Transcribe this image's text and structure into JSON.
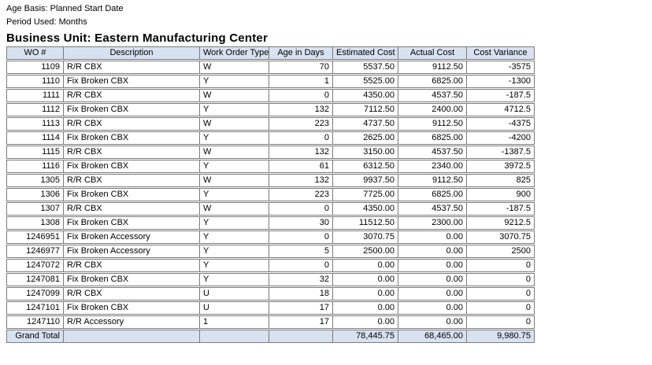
{
  "meta": {
    "age_basis": "Age Basis: Planned Start Date",
    "period_used": "Period Used: Months"
  },
  "title": "Business Unit: Eastern Manufacturing Center",
  "table": {
    "columns": [
      "WO #",
      "Description",
      "Work Order Type",
      "Age in Days",
      "Estimated Cost",
      "Actual Cost",
      "Cost Variance"
    ],
    "rows": [
      [
        "1109",
        "R/R CBX",
        "W",
        "70",
        "5537.50",
        "9112.50",
        "-3575"
      ],
      [
        "1110",
        "Fix Broken CBX",
        "Y",
        "1",
        "5525.00",
        "6825.00",
        "-1300"
      ],
      [
        "1111",
        "R/R CBX",
        "W",
        "0",
        "4350.00",
        "4537.50",
        "-187.5"
      ],
      [
        "1112",
        "Fix Broken CBX",
        "Y",
        "132",
        "7112.50",
        "2400.00",
        "4712.5"
      ],
      [
        "1113",
        "R/R CBX",
        "W",
        "223",
        "4737.50",
        "9112.50",
        "-4375"
      ],
      [
        "1114",
        "Fix Broken CBX",
        "Y",
        "0",
        "2625.00",
        "6825.00",
        "-4200"
      ],
      [
        "1115",
        "R/R CBX",
        "W",
        "132",
        "3150.00",
        "4537.50",
        "-1387.5"
      ],
      [
        "1116",
        "Fix Broken CBX",
        "Y",
        "61",
        "6312.50",
        "2340.00",
        "3972.5"
      ],
      [
        "1305",
        "R/R CBX",
        "W",
        "132",
        "9937.50",
        "9112.50",
        "825"
      ],
      [
        "1306",
        "Fix Broken CBX",
        "Y",
        "223",
        "7725.00",
        "6825.00",
        "900"
      ],
      [
        "1307",
        "R/R CBX",
        "W",
        "0",
        "4350.00",
        "4537.50",
        "-187.5"
      ],
      [
        "1308",
        "Fix Broken CBX",
        "Y",
        "30",
        "11512.50",
        "2300.00",
        "9212.5"
      ],
      [
        "1246951",
        "Fix Broken Accessory",
        "Y",
        "0",
        "3070.75",
        "0.00",
        "3070.75"
      ],
      [
        "1246977",
        "Fix Broken Accessory",
        "Y",
        "5",
        "2500.00",
        "0.00",
        "2500"
      ],
      [
        "1247072",
        "R/R CBX",
        "Y",
        "0",
        "0.00",
        "0.00",
        "0"
      ],
      [
        "1247081",
        "Fix Broken CBX",
        "Y",
        "32",
        "0.00",
        "0.00",
        "0"
      ],
      [
        "1247099",
        "R/R CBX",
        "U",
        "18",
        "0.00",
        "0.00",
        "0"
      ],
      [
        "1247101",
        "Fix Broken CBX",
        "U",
        "17",
        "0.00",
        "0.00",
        "0"
      ],
      [
        "1247110",
        "R/R Accessory",
        "1",
        "17",
        "0.00",
        "0.00",
        "0"
      ]
    ],
    "grand_total": {
      "label": "Grand Total",
      "description": "",
      "work_order_type": "",
      "age_in_days": "",
      "estimated_cost": "78,445.75",
      "actual_cost": "68,465.00",
      "cost_variance": "9,980.75"
    }
  },
  "colors": {
    "header_bg": "#d8e1f0",
    "total_bg": "#d8e1f0",
    "border": "#7b7b7b",
    "text": "#000000",
    "background": "#ffffff"
  }
}
